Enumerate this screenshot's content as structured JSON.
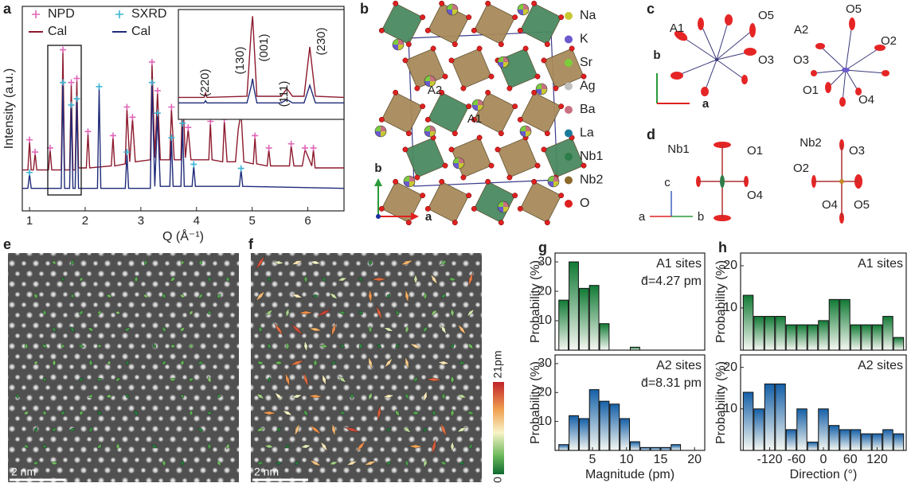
{
  "panel_labels": [
    "a",
    "b",
    "c",
    "d",
    "e",
    "f",
    "g",
    "h"
  ],
  "chart_data": [
    {
      "type": "line",
      "x_label": "Q (Å⁻¹)",
      "y_label": "Intensity (a.u.)",
      "xlim": [
        0.87,
        6.65
      ],
      "xticks": [
        1,
        2,
        3,
        4,
        5,
        6
      ],
      "ylim": [
        0,
        100
      ],
      "series": [
        {
          "name": "NPD",
          "style": "marker",
          "color": "#e066b8",
          "x": [
            1.0,
            1.1,
            1.37,
            1.6,
            1.75,
            1.85,
            2.05,
            2.5,
            2.75,
            2.85,
            3.2,
            3.3,
            3.55,
            3.75,
            3.85,
            4.25,
            4.5,
            4.8,
            5.05,
            5.3,
            5.7,
            5.95,
            6.1
          ],
          "values": [
            34,
            28,
            30,
            78,
            62,
            64,
            38,
            36,
            50,
            45,
            72,
            58,
            50,
            58,
            40,
            43,
            44,
            48,
            36,
            30,
            32,
            30,
            30
          ]
        },
        {
          "name": "Cal",
          "style": "line",
          "color": "#8c1a2e",
          "x": [
            0.87,
            0.97,
            1.0,
            1.03,
            1.07,
            1.1,
            1.13,
            1.34,
            1.37,
            1.4,
            1.57,
            1.6,
            1.63,
            1.72,
            1.75,
            1.78,
            1.82,
            1.85,
            1.88,
            2.02,
            2.05,
            2.08,
            2.47,
            2.5,
            2.53,
            2.72,
            2.75,
            2.8,
            2.85,
            2.9,
            3.17,
            3.2,
            3.25,
            3.3,
            3.35,
            3.52,
            3.55,
            3.6,
            3.72,
            3.75,
            3.8,
            3.85,
            3.9,
            4.22,
            4.25,
            4.28,
            4.47,
            4.5,
            4.55,
            4.7,
            4.75,
            4.8,
            4.85,
            5.02,
            5.05,
            5.08,
            5.27,
            5.3,
            5.33,
            5.67,
            5.7,
            5.75,
            5.9,
            5.95,
            6.07,
            6.1,
            6.13,
            6.65
          ],
          "values": [
            20,
            20,
            34,
            20,
            20,
            28,
            20,
            20,
            30,
            20,
            20,
            78,
            20,
            20,
            62,
            20,
            20,
            64,
            21,
            21,
            38,
            21,
            22,
            36,
            22,
            23,
            50,
            24,
            45,
            24,
            25,
            72,
            26,
            58,
            25,
            25,
            50,
            25,
            25,
            58,
            26,
            40,
            25,
            25,
            43,
            25,
            24,
            44,
            24,
            24,
            40,
            48,
            24,
            23,
            36,
            23,
            22,
            30,
            22,
            22,
            32,
            22,
            22,
            30,
            22,
            30,
            21,
            21
          ]
        },
        {
          "name": "SXRD",
          "style": "marker",
          "color": "#3cb5d6",
          "x": [
            1.0,
            1.6,
            1.75,
            1.85,
            2.25,
            2.75,
            3.2,
            3.3,
            3.55,
            3.75,
            3.95,
            4.8
          ],
          "values": [
            18,
            62,
            51,
            54,
            60,
            28,
            62,
            47,
            35,
            42,
            22,
            20
          ]
        },
        {
          "name": "Cal",
          "style": "line",
          "color": "#1f2a78",
          "x": [
            0.87,
            0.97,
            1.0,
            1.03,
            1.57,
            1.6,
            1.63,
            1.72,
            1.75,
            1.78,
            1.82,
            1.85,
            1.88,
            2.22,
            2.25,
            2.28,
            2.72,
            2.75,
            2.78,
            3.17,
            3.2,
            3.25,
            3.3,
            3.35,
            3.52,
            3.55,
            3.58,
            3.72,
            3.75,
            3.78,
            3.92,
            3.95,
            3.98,
            4.77,
            4.8,
            4.83,
            6.65
          ],
          "values": [
            11,
            11,
            18,
            11,
            11,
            62,
            11,
            11,
            51,
            11,
            11,
            54,
            11,
            11,
            60,
            11,
            11,
            28,
            11,
            11,
            62,
            12,
            47,
            12,
            12,
            35,
            12,
            12,
            42,
            12,
            12,
            22,
            12,
            12,
            20,
            12,
            11
          ]
        }
      ]
    },
    {
      "type": "line",
      "xlim": [
        1.36,
        1.94
      ],
      "ylim": [
        0,
        100
      ],
      "annotations": [
        "(220)",
        "(130)",
        "(001)",
        "(111)",
        "(230)"
      ],
      "x": [
        1.36,
        1.45,
        1.455,
        1.46,
        1.6,
        1.615,
        1.62,
        1.625,
        1.635,
        1.72,
        1.74,
        1.76,
        1.8,
        1.82,
        1.84,
        1.94
      ],
      "series": [
        {
          "color": "#8c1a2e",
          "values": [
            20,
            20,
            24,
            20,
            21,
            80,
            94,
            70,
            21,
            21,
            28,
            21,
            21,
            66,
            21,
            20
          ]
        },
        {
          "color": "#1f2a78",
          "values": [
            15,
            15,
            17,
            15,
            15,
            30,
            37,
            28,
            15,
            15,
            18,
            15,
            15,
            31,
            15,
            15
          ]
        }
      ]
    },
    {
      "type": "histogram",
      "y_label": "Probability (%)",
      "annotations": [
        "A1 sites",
        "d̄=4.27 pm"
      ],
      "color": "#117a35",
      "bins": [
        0,
        1.5,
        3,
        4.5,
        6,
        7.5,
        9,
        10.5,
        12,
        13.5,
        15,
        16.5,
        18,
        19.5,
        21
      ],
      "values": [
        17,
        30,
        21,
        22,
        9,
        0,
        0,
        1,
        0,
        0,
        0,
        0,
        0,
        0
      ],
      "xlim": [
        -0.5,
        21.5
      ],
      "ylim": [
        0,
        33
      ],
      "yticks": [
        10,
        20,
        30
      ]
    },
    {
      "type": "histogram",
      "y_label": "Probability (%)",
      "x_label": "Magnitude (pm)",
      "annotations": [
        "A2 sites",
        "d̄=8.31 pm"
      ],
      "color": "#1560a8",
      "bins": [
        0,
        1.5,
        3,
        4.5,
        6,
        7.5,
        9,
        10.5,
        12,
        13.5,
        15,
        16.5,
        18,
        19.5,
        21
      ],
      "values": [
        2,
        12,
        11,
        21,
        17,
        16,
        11,
        3,
        1,
        1,
        1,
        2,
        0,
        0
      ],
      "xlim": [
        -0.5,
        21.5
      ],
      "xticks": [
        5,
        10,
        15,
        20
      ],
      "ylim": [
        0,
        33
      ],
      "yticks": [
        10,
        20,
        30
      ]
    },
    {
      "type": "histogram",
      "y_label": "Probability (%)",
      "annotations": [
        "A1 sites"
      ],
      "color": "#117a35",
      "bins": [
        -180,
        -156,
        -132,
        -108,
        -84,
        -60,
        -36,
        -12,
        12,
        36,
        60,
        84,
        108,
        132,
        156,
        180
      ],
      "values": [
        13,
        8,
        8,
        8,
        6,
        6,
        6,
        7,
        12,
        12,
        6,
        6,
        6,
        8,
        3
      ],
      "xlim": [
        -185,
        185
      ],
      "ylim": [
        0,
        23
      ],
      "yticks": [
        10,
        20
      ]
    },
    {
      "type": "histogram",
      "y_label": "Probability (%)",
      "x_label": "Direction (°)",
      "annotations": [
        "A2 sites"
      ],
      "color": "#1560a8",
      "bins": [
        -180,
        -156,
        -132,
        -108,
        -84,
        -60,
        -36,
        -12,
        12,
        36,
        60,
        84,
        108,
        132,
        156,
        180
      ],
      "values": [
        14,
        10,
        16,
        16,
        5,
        10,
        2,
        10,
        6,
        5,
        5,
        4,
        4,
        5,
        4
      ],
      "xlim": [
        -185,
        185
      ],
      "xticks": [
        -120,
        -60,
        0,
        60,
        120
      ],
      "ylim": [
        0,
        23
      ],
      "yticks": [
        10,
        20
      ]
    }
  ],
  "structure": {
    "site_labels": [
      "A2",
      "A1"
    ],
    "axes": [
      "b",
      "a"
    ],
    "legend": [
      {
        "name": "Na",
        "color": "#c8c832"
      },
      {
        "name": "K",
        "color": "#6a5acd"
      },
      {
        "name": "Sr",
        "color": "#7ccd3c"
      },
      {
        "name": "Ag",
        "color": "#c0c0c0"
      },
      {
        "name": "Ba",
        "color": "#c87080"
      },
      {
        "name": "La",
        "color": "#1a7a9a"
      },
      {
        "name": "Nb1",
        "color": "#2e7d4a"
      },
      {
        "name": "Nb2",
        "color": "#8b6a2a"
      },
      {
        "name": "O",
        "color": "#e02020"
      }
    ]
  },
  "ellipsoids": {
    "A1": {
      "labels": [
        "A1",
        "O5",
        "O3"
      ],
      "axes": [
        "b",
        "a"
      ]
    },
    "A2": {
      "labels": [
        "A2",
        "O5",
        "O2",
        "O3",
        "O1",
        "O4"
      ]
    },
    "Nb1": {
      "labels": [
        "Nb1",
        "O1",
        "O4"
      ],
      "axes": [
        "c",
        "a",
        "b"
      ]
    },
    "Nb2": {
      "labels": [
        "Nb2",
        "O3",
        "O2",
        "O4",
        "O5"
      ]
    }
  },
  "images": {
    "scale_bar": [
      "2 nm",
      "2 nm"
    ],
    "colorbar": {
      "max": "21pm",
      "min": "0"
    }
  }
}
